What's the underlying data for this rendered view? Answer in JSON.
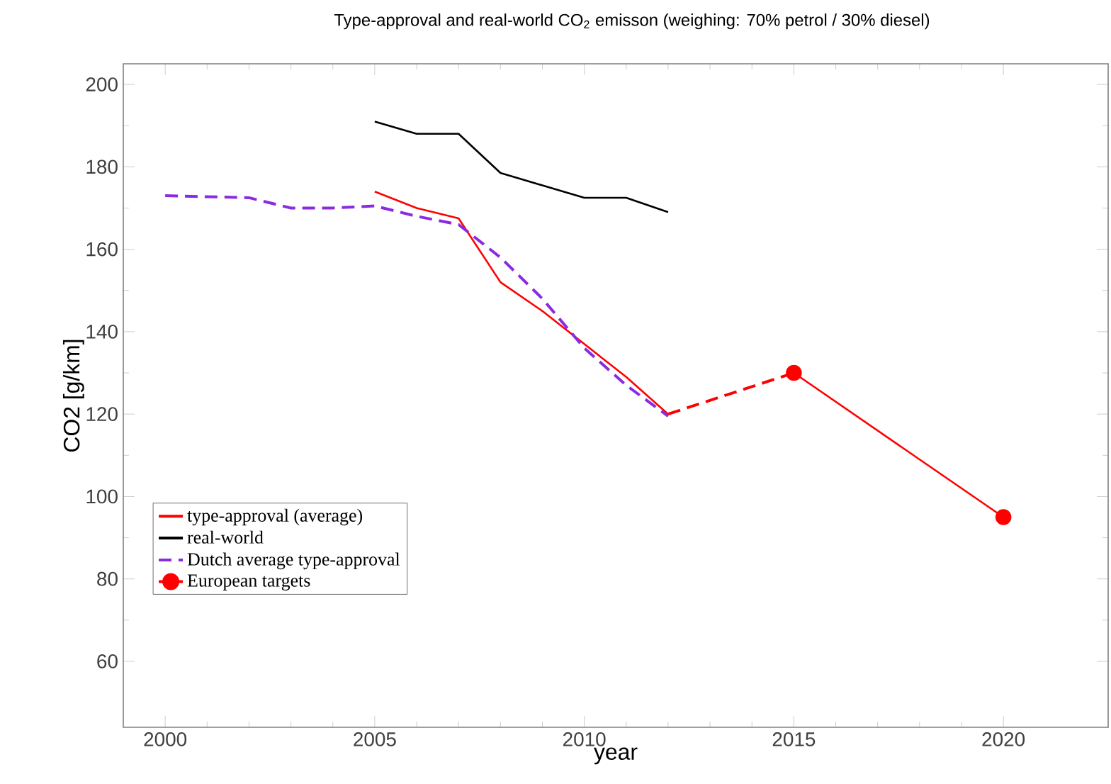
{
  "chart_data": {
    "type": "line",
    "title": "Type-approval and real-world CO$_{2}$ emisson (weighing: 70% petrol / 30% diesel)",
    "xlabel": "year",
    "ylabel": "CO2 [g/km]",
    "xlim": [
      1999,
      2022.5
    ],
    "ylim": [
      44,
      205
    ],
    "xticks": [
      2000,
      2005,
      2010,
      2015,
      2020
    ],
    "yticks": [
      60,
      80,
      100,
      120,
      140,
      160,
      180,
      200
    ],
    "grid": false,
    "legend": "bottom left",
    "series": [
      {
        "name": "type-approval (average)",
        "color": "#ff0000",
        "x": [
          2005,
          2006,
          2007,
          2008,
          2009,
          2010,
          2011,
          2012
        ],
        "values": [
          174,
          170,
          167.5,
          152,
          145,
          137,
          129,
          120
        ],
        "marker": "none",
        "line_style": "solid"
      },
      {
        "name": "real-world",
        "color": "#000000",
        "x": [
          2005,
          2006,
          2007,
          2008,
          2009,
          2010,
          2011,
          2012
        ],
        "values": [
          191,
          188,
          188,
          178.5,
          175.5,
          172.5,
          172.5,
          169
        ],
        "marker": "none",
        "line_style": "solid"
      },
      {
        "name": "Dutch average type-approval",
        "color": "#8a2be2",
        "x": [
          2000,
          2002,
          2003,
          2004,
          2005,
          2006,
          2007,
          2008,
          2009,
          2010,
          2011,
          2012
        ],
        "values": [
          173,
          172.5,
          170,
          170,
          170.5,
          168,
          166,
          158,
          148,
          136,
          127,
          119.5
        ],
        "marker": "none",
        "line_style": "dashed"
      },
      {
        "name": "European targets",
        "color": "#ff0000",
        "x": [
          2015,
          2020
        ],
        "values": [
          130,
          95
        ],
        "marker": "circle",
        "line_style": "solid"
      },
      {
        "color": "#ff0000",
        "x": [
          2012,
          2015
        ],
        "values": [
          120,
          130
        ],
        "marker": "none",
        "line_style": "dashed"
      }
    ]
  }
}
